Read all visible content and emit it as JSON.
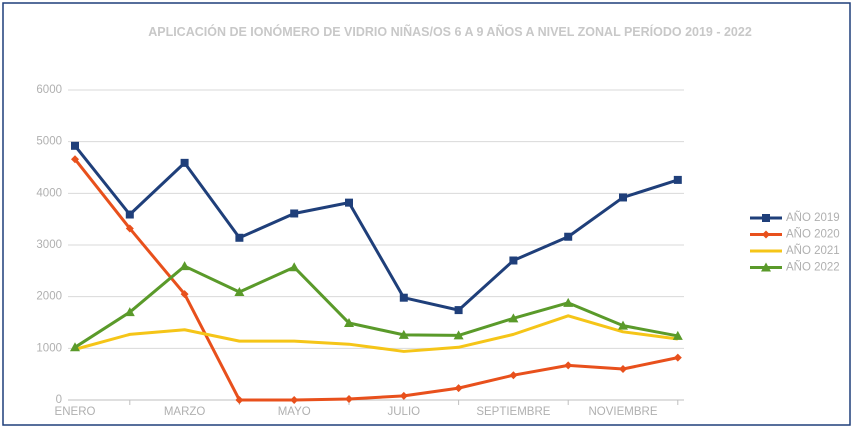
{
  "chart_data": {
    "type": "line",
    "title": "APLICACIÓN DE IONÓMERO DE VIDRIO NIÑAS/OS 6 A 9 AÑOS A NIVEL ZONAL PERÍODO 2019 - 2022",
    "categories": [
      "ENERO",
      null,
      "MARZO",
      null,
      "MAYO",
      null,
      "JULIO",
      null,
      "SEPTIEMBRE",
      null,
      "NOVIEMBRE",
      null
    ],
    "series": [
      {
        "name": "AÑO 2019",
        "color": "#1f3f7a",
        "marker": "square",
        "values": [
          4920,
          3590,
          4590,
          3140,
          3610,
          3820,
          1980,
          1740,
          2700,
          3160,
          3920,
          4260
        ]
      },
      {
        "name": "AÑO 2020",
        "color": "#e8501c",
        "marker": "diamond",
        "values": [
          4660,
          3320,
          2050,
          0,
          0,
          20,
          80,
          230,
          480,
          670,
          600,
          820
        ]
      },
      {
        "name": "AÑO 2021",
        "color": "#f5c518",
        "marker": "none",
        "values": [
          980,
          1270,
          1360,
          1140,
          1140,
          1080,
          940,
          1020,
          1270,
          1630,
          1320,
          1180
        ]
      },
      {
        "name": "AÑO 2022",
        "color": "#5a9a2a",
        "marker": "triangle",
        "values": [
          1020,
          1700,
          2590,
          2090,
          2570,
          1490,
          1260,
          1250,
          1580,
          1880,
          1440,
          1240
        ]
      }
    ],
    "ylim": [
      0,
      6000
    ],
    "yticks": [
      0,
      1000,
      2000,
      3000,
      4000,
      5000,
      6000
    ],
    "grid": true,
    "legend": "right"
  }
}
